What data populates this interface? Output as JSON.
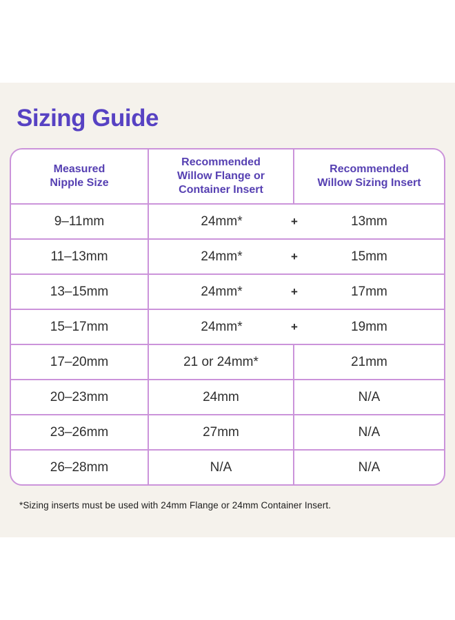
{
  "title": "Sizing Guide",
  "colors": {
    "page_background": "#ffffff",
    "card_background": "#f5f2ec",
    "title_purple": "#5742c3",
    "header_purple": "#5640b2",
    "table_border": "#cb93da",
    "cell_text": "#2e2e2e"
  },
  "table": {
    "headers": [
      {
        "label": "Measured\nNipple Size"
      },
      {
        "label": "Recommended\nWillow Flange or\nContainer Insert"
      },
      {
        "label": "Recommended\nWillow Sizing Insert"
      }
    ],
    "rows": [
      {
        "measured": "9–11mm",
        "flange": "24mm*",
        "plus": "+",
        "insert": "13mm"
      },
      {
        "measured": "11–13mm",
        "flange": "24mm*",
        "plus": "+",
        "insert": "15mm"
      },
      {
        "measured": "13–15mm",
        "flange": "24mm*",
        "plus": "+",
        "insert": "17mm"
      },
      {
        "measured": "15–17mm",
        "flange": "24mm*",
        "plus": "+",
        "insert": "19mm"
      },
      {
        "measured": "17–20mm",
        "flange": "21 or 24mm*",
        "insert": "21mm"
      },
      {
        "measured": "20–23mm",
        "flange": "24mm",
        "insert": "N/A"
      },
      {
        "measured": "23–26mm",
        "flange": "27mm",
        "insert": "N/A"
      },
      {
        "measured": "26–28mm",
        "flange": "N/A",
        "insert": "N/A"
      }
    ]
  },
  "footnote": "*Sizing inserts must be used with 24mm Flange or 24mm Container Insert."
}
